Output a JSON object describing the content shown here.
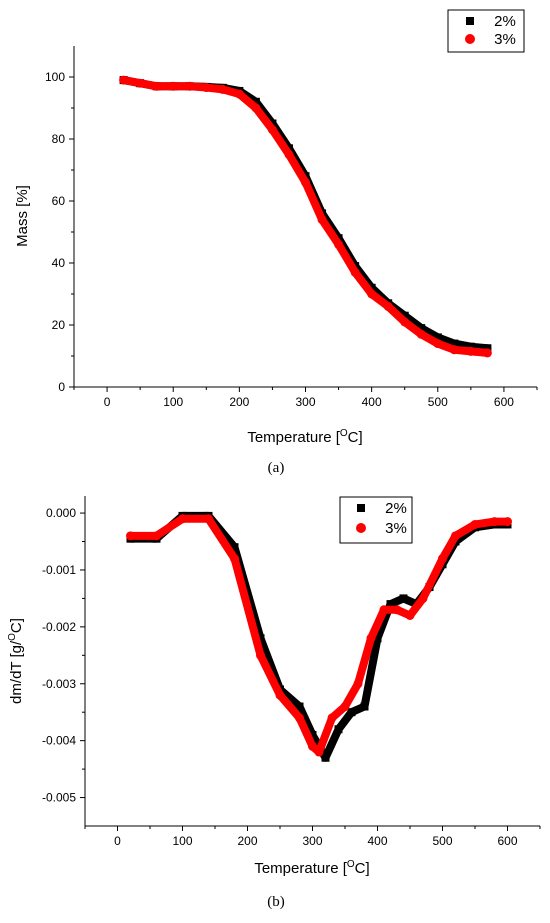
{
  "chart_data": [
    {
      "type": "scatter",
      "panel_label": "(a)",
      "xlabel": {
        "prefix": "Temperature [",
        "sup": "O",
        "suffix": "C]"
      },
      "ylabel": "Mass [%]",
      "xlim": [
        -50,
        650
      ],
      "ylim": [
        0,
        110
      ],
      "xticks": [
        0,
        100,
        200,
        300,
        400,
        500,
        600
      ],
      "xtick_labels": [
        "0",
        "100",
        "200",
        "300",
        "400",
        "500",
        "600"
      ],
      "yticks": [
        0,
        20,
        40,
        60,
        80,
        100
      ],
      "ytick_labels": [
        "0",
        "20",
        "40",
        "60",
        "80",
        "100"
      ],
      "legend_position": "top-right",
      "grid": false,
      "series": [
        {
          "name": "2%",
          "marker": "square",
          "color": "#000000",
          "x": [
            25,
            50,
            75,
            100,
            125,
            150,
            175,
            200,
            225,
            250,
            275,
            300,
            325,
            350,
            375,
            400,
            425,
            450,
            475,
            500,
            525,
            550,
            575
          ],
          "y": [
            99,
            98,
            97,
            97,
            97,
            96.8,
            96.5,
            95.5,
            92,
            85,
            77,
            68,
            56,
            48,
            39,
            32,
            27,
            23,
            19,
            16,
            14,
            13,
            12.5
          ]
        },
        {
          "name": "3%",
          "marker": "circle",
          "color": "#ff0000",
          "x": [
            25,
            50,
            75,
            100,
            125,
            150,
            175,
            200,
            225,
            250,
            275,
            300,
            325,
            350,
            375,
            400,
            425,
            450,
            475,
            500,
            525,
            550,
            575
          ],
          "y": [
            99,
            98,
            97,
            97,
            97,
            96.6,
            96,
            94.5,
            90,
            83,
            75,
            66,
            54,
            46,
            37,
            30,
            26,
            21,
            17,
            14,
            12,
            11.5,
            11
          ]
        }
      ]
    },
    {
      "type": "scatter",
      "panel_label": "(b)",
      "xlabel": {
        "prefix": "Temperature [",
        "sup": "O",
        "suffix": "C]"
      },
      "ylabel": {
        "prefix": "dm/dT [g/",
        "sup": "O",
        "suffix": "C]"
      },
      "xlim": [
        -50,
        650
      ],
      "ylim": [
        -0.0055,
        0.0003
      ],
      "xticks": [
        0,
        100,
        200,
        300,
        400,
        500,
        600
      ],
      "xtick_labels": [
        "0",
        "100",
        "200",
        "300",
        "400",
        "500",
        "600"
      ],
      "yticks": [
        0.0,
        -0.001,
        -0.002,
        -0.003,
        -0.004,
        -0.005
      ],
      "ytick_labels": [
        "0.000",
        "-0.001",
        "-0.002",
        "-0.003",
        "-0.004",
        "-0.005"
      ],
      "legend_position": "top-right",
      "grid": false,
      "series": [
        {
          "name": "2%",
          "marker": "square",
          "color": "#000000",
          "x": [
            20,
            60,
            100,
            140,
            180,
            220,
            250,
            280,
            300,
            320,
            340,
            360,
            380,
            400,
            420,
            440,
            460,
            480,
            500,
            520,
            550,
            580,
            600
          ],
          "y": [
            -0.00045,
            -0.00045,
            -5e-05,
            -5e-05,
            -0.0006,
            -0.0022,
            -0.0031,
            -0.0034,
            -0.0039,
            -0.0043,
            -0.0038,
            -0.0035,
            -0.0034,
            -0.0022,
            -0.0016,
            -0.0015,
            -0.0016,
            -0.0013,
            -0.0009,
            -0.0005,
            -0.00025,
            -0.0002,
            -0.0002
          ]
        },
        {
          "name": "3%",
          "marker": "circle",
          "color": "#ff0000",
          "x": [
            20,
            60,
            100,
            140,
            180,
            220,
            250,
            280,
            300,
            310,
            330,
            350,
            370,
            390,
            410,
            430,
            450,
            470,
            500,
            520,
            550,
            580,
            600
          ],
          "y": [
            -0.0004,
            -0.0004,
            -0.0001,
            -0.0001,
            -0.0008,
            -0.0025,
            -0.0032,
            -0.0036,
            -0.0041,
            -0.0042,
            -0.0036,
            -0.0034,
            -0.003,
            -0.0022,
            -0.0017,
            -0.0017,
            -0.0018,
            -0.0015,
            -0.0008,
            -0.0004,
            -0.0002,
            -0.00015,
            -0.00015
          ]
        }
      ]
    }
  ]
}
